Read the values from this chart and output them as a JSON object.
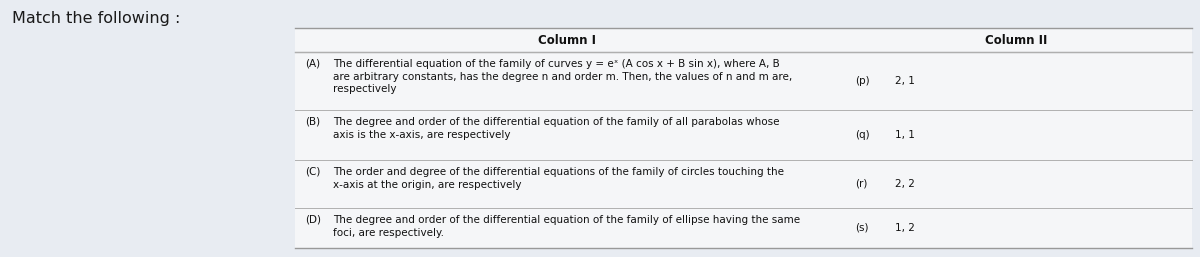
{
  "title": "Match the following :",
  "bg_color": "#e8ecf2",
  "table_bg": "#f5f6f8",
  "col1_header": "Column I",
  "col2_header": "Column II",
  "rows": [
    {
      "label": "(A)",
      "lines": [
        "The differential equation of the family of curves y = eˣ (A cos x + B sin x), where A, B",
        "are arbitrary constants, has the degree n and order m. Then, the values of n and m are,",
        "respectively"
      ],
      "col2_label": "(p)",
      "col2_value": "2, 1"
    },
    {
      "label": "(B)",
      "lines": [
        "The degree and order of the differential equation of the family of all parabolas whose",
        "axis is the x-axis, are respectively"
      ],
      "col2_label": "(q)",
      "col2_value": "1, 1"
    },
    {
      "label": "(C)",
      "lines": [
        "The order and degree of the differential equations of the family of circles touching the",
        "x-axis at the origin, are respectively"
      ],
      "col2_label": "(r)",
      "col2_value": "2, 2"
    },
    {
      "label": "(D)",
      "lines": [
        "The degree and order of the differential equation of the family of ellipse having the same",
        "foci, are respectively."
      ],
      "col2_label": "(s)",
      "col2_value": "1, 2"
    }
  ],
  "font_size_body": 7.5,
  "font_size_header": 8.5,
  "font_size_title": 11.5
}
